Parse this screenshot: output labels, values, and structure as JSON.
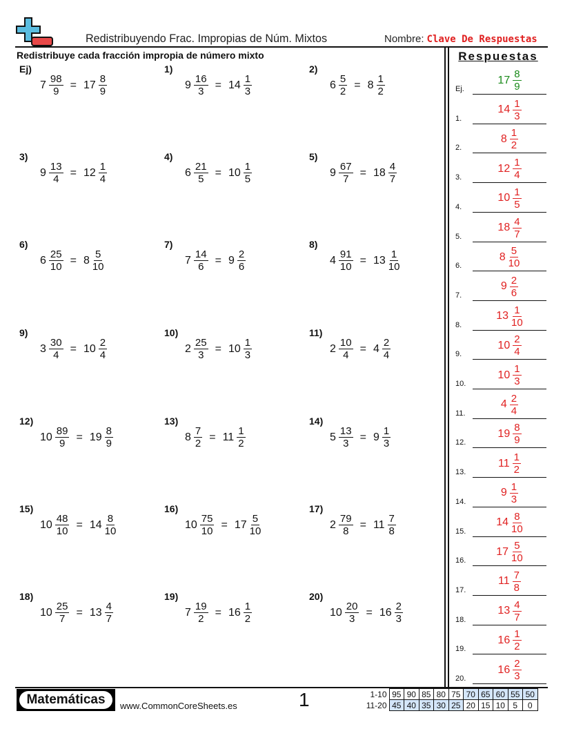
{
  "header": {
    "title": "Redistribuyendo Frac. Impropias de Núm. Mixtos",
    "name_label": "Nombre:",
    "name_value": "Clave De Respuestas",
    "logo_icon": "plus-minus-icon"
  },
  "instructions": "Redistribuye cada fracción impropia de número mixto",
  "answers_title": "Respuestas",
  "colors": {
    "answer": "#e02020",
    "example": "#1a8a1a",
    "logo_plus": "#5bbde0",
    "logo_minus": "#e84848",
    "score_highlight": "#d4e6fa"
  },
  "problems": [
    {
      "label": "Ej)",
      "whole": "7",
      "num": "98",
      "den": "9",
      "a_whole": "17",
      "a_num": "8",
      "a_den": "9",
      "key": "Ej."
    },
    {
      "label": "1)",
      "whole": "9",
      "num": "16",
      "den": "3",
      "a_whole": "14",
      "a_num": "1",
      "a_den": "3",
      "key": "1."
    },
    {
      "label": "2)",
      "whole": "6",
      "num": "5",
      "den": "2",
      "a_whole": "8",
      "a_num": "1",
      "a_den": "2",
      "key": "2."
    },
    {
      "label": "3)",
      "whole": "9",
      "num": "13",
      "den": "4",
      "a_whole": "12",
      "a_num": "1",
      "a_den": "4",
      "key": "3."
    },
    {
      "label": "4)",
      "whole": "6",
      "num": "21",
      "den": "5",
      "a_whole": "10",
      "a_num": "1",
      "a_den": "5",
      "key": "4."
    },
    {
      "label": "5)",
      "whole": "9",
      "num": "67",
      "den": "7",
      "a_whole": "18",
      "a_num": "4",
      "a_den": "7",
      "key": "5."
    },
    {
      "label": "6)",
      "whole": "6",
      "num": "25",
      "den": "10",
      "a_whole": "8",
      "a_num": "5",
      "a_den": "10",
      "key": "6."
    },
    {
      "label": "7)",
      "whole": "7",
      "num": "14",
      "den": "6",
      "a_whole": "9",
      "a_num": "2",
      "a_den": "6",
      "key": "7."
    },
    {
      "label": "8)",
      "whole": "4",
      "num": "91",
      "den": "10",
      "a_whole": "13",
      "a_num": "1",
      "a_den": "10",
      "key": "8."
    },
    {
      "label": "9)",
      "whole": "3",
      "num": "30",
      "den": "4",
      "a_whole": "10",
      "a_num": "2",
      "a_den": "4",
      "key": "9."
    },
    {
      "label": "10)",
      "whole": "2",
      "num": "25",
      "den": "3",
      "a_whole": "10",
      "a_num": "1",
      "a_den": "3",
      "key": "10."
    },
    {
      "label": "11)",
      "whole": "2",
      "num": "10",
      "den": "4",
      "a_whole": "4",
      "a_num": "2",
      "a_den": "4",
      "key": "11."
    },
    {
      "label": "12)",
      "whole": "10",
      "num": "89",
      "den": "9",
      "a_whole": "19",
      "a_num": "8",
      "a_den": "9",
      "key": "12."
    },
    {
      "label": "13)",
      "whole": "8",
      "num": "7",
      "den": "2",
      "a_whole": "11",
      "a_num": "1",
      "a_den": "2",
      "key": "13."
    },
    {
      "label": "14)",
      "whole": "5",
      "num": "13",
      "den": "3",
      "a_whole": "9",
      "a_num": "1",
      "a_den": "3",
      "key": "14."
    },
    {
      "label": "15)",
      "whole": "10",
      "num": "48",
      "den": "10",
      "a_whole": "14",
      "a_num": "8",
      "a_den": "10",
      "key": "15."
    },
    {
      "label": "16)",
      "whole": "10",
      "num": "75",
      "den": "10",
      "a_whole": "17",
      "a_num": "5",
      "a_den": "10",
      "key": "16."
    },
    {
      "label": "17)",
      "whole": "2",
      "num": "79",
      "den": "8",
      "a_whole": "11",
      "a_num": "7",
      "a_den": "8",
      "key": "17."
    },
    {
      "label": "18)",
      "whole": "10",
      "num": "25",
      "den": "7",
      "a_whole": "13",
      "a_num": "4",
      "a_den": "7",
      "key": "18."
    },
    {
      "label": "19)",
      "whole": "7",
      "num": "19",
      "den": "2",
      "a_whole": "16",
      "a_num": "1",
      "a_den": "2",
      "key": "19."
    },
    {
      "label": "20)",
      "whole": "10",
      "num": "20",
      "den": "3",
      "a_whole": "16",
      "a_num": "2",
      "a_den": "3",
      "key": "20."
    }
  ],
  "equals": "=",
  "footer": {
    "brand": "Matemáticas",
    "site": "www.CommonCoreSheets.es",
    "page": "1",
    "score_rows": [
      {
        "label": "1-10",
        "values": [
          "95",
          "90",
          "85",
          "80",
          "75",
          "70",
          "65",
          "60",
          "55",
          "50"
        ],
        "highlighted": [
          false,
          false,
          false,
          false,
          false,
          true,
          true,
          true,
          true,
          true
        ]
      },
      {
        "label": "11-20",
        "values": [
          "45",
          "40",
          "35",
          "30",
          "25",
          "20",
          "15",
          "10",
          "5",
          "0"
        ],
        "highlighted": [
          true,
          true,
          true,
          true,
          true,
          false,
          false,
          false,
          false,
          false
        ]
      }
    ]
  }
}
